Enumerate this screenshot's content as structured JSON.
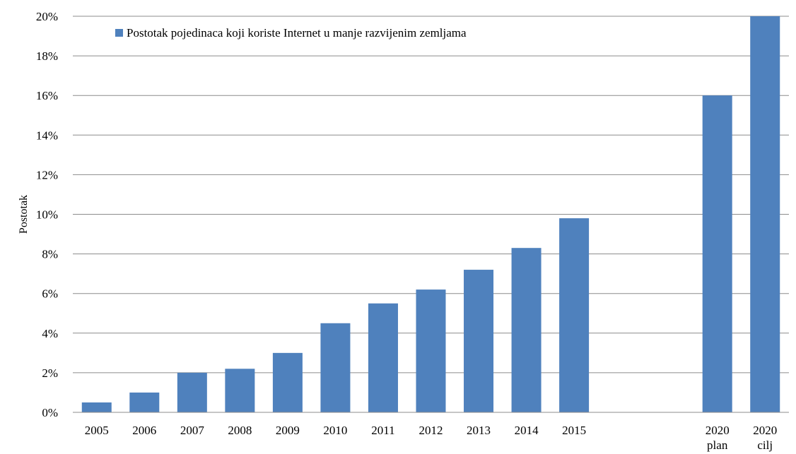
{
  "chart_data": {
    "type": "bar",
    "title": "",
    "xlabel": "",
    "ylabel": "Postotak",
    "ylim": [
      0,
      20
    ],
    "yticks": [
      "0%",
      "2%",
      "4%",
      "6%",
      "8%",
      "10%",
      "12%",
      "14%",
      "16%",
      "18%",
      "20%"
    ],
    "grid": true,
    "legend_position": "top-left",
    "categories": [
      "2005",
      "2006",
      "2007",
      "2008",
      "2009",
      "2010",
      "2011",
      "2012",
      "2013",
      "2014",
      "2015",
      "",
      "",
      "2020 plan",
      "2020 cilj"
    ],
    "series": [
      {
        "name": "Postotak pojedinaca koji koriste Internet u manje razvijenim zemljama",
        "color": "#4f81bd",
        "values": [
          0.5,
          1.0,
          2.0,
          2.2,
          3.0,
          4.5,
          5.5,
          6.2,
          7.2,
          8.3,
          9.8,
          null,
          null,
          16.0,
          20.0
        ]
      }
    ]
  }
}
